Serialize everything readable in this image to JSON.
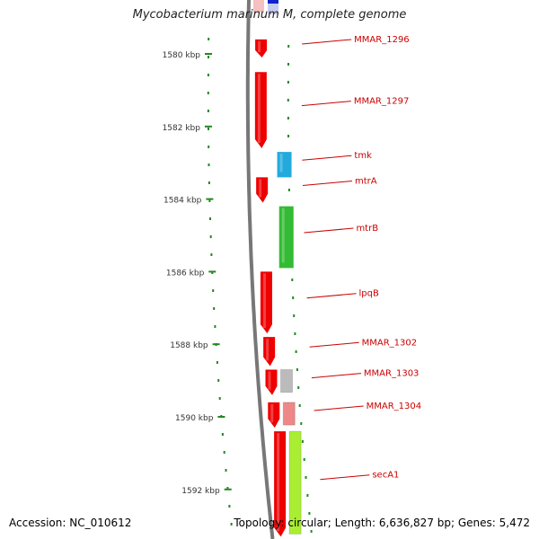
{
  "title": "Mycobacterium marinum M, complete genome",
  "footer": {
    "accession": "Accession: NC_010612",
    "topology": "Topology: circular; Length: 6,636,827 bp; Genes: 5,472"
  },
  "scale_marks": [
    "1580 kbp",
    "1582 kbp",
    "1584 kbp",
    "1586 kbp",
    "1588 kbp",
    "1590 kbp",
    "1592 kbp"
  ],
  "genes": [
    {
      "name": "MMAR_1296",
      "strand": "minus",
      "start_kbp": 1579.6,
      "end_kbp": 1580.1
    },
    {
      "name": "MMAR_1297",
      "strand": "minus",
      "start_kbp": 1580.5,
      "end_kbp": 1582.6
    },
    {
      "name": "tmk",
      "strand": "plus",
      "start_kbp": 1582.7,
      "end_kbp": 1583.4
    },
    {
      "name": "mtrA",
      "strand": "minus",
      "start_kbp": 1583.4,
      "end_kbp": 1584.1
    },
    {
      "name": "mtrB",
      "strand": "plus",
      "start_kbp": 1584.2,
      "end_kbp": 1585.9
    },
    {
      "name": "lpqB",
      "strand": "minus",
      "start_kbp": 1586.0,
      "end_kbp": 1587.7
    },
    {
      "name": "MMAR_1302",
      "strand": "minus",
      "start_kbp": 1587.8,
      "end_kbp": 1588.6
    },
    {
      "name": "MMAR_1303",
      "strand": "minus",
      "start_kbp": 1588.7,
      "end_kbp": 1589.4
    },
    {
      "name": "MMAR_1304",
      "strand": "minus",
      "start_kbp": 1589.6,
      "end_kbp": 1590.3
    },
    {
      "name": "secA1",
      "strand": "minus",
      "start_kbp": 1590.4,
      "end_kbp": 1593.3
    }
  ],
  "colors": {
    "gene_default": "#ee0000",
    "tmk": "#22aadd",
    "mtrB": "#33bb33",
    "MMAR_1303": "#bbbbbb",
    "MMAR_1304": "#ee8888",
    "secA1": "#aaee33",
    "top_blue": "#1122cc",
    "label": "#cc0000",
    "tick": "#228822",
    "backbone": "#777777"
  }
}
